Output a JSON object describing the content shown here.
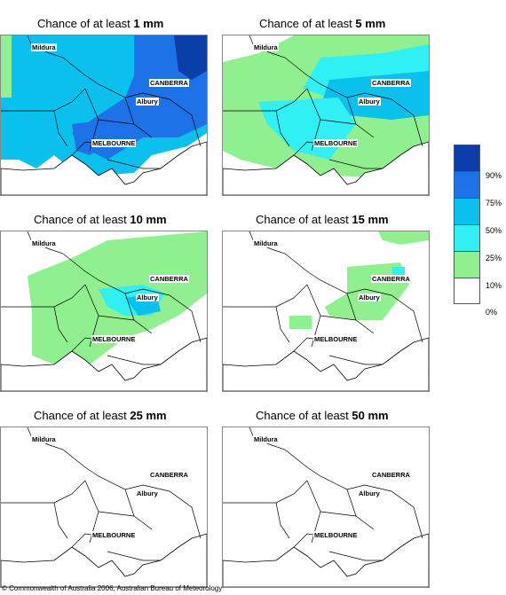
{
  "panels": [
    {
      "prefix": "Chance of at least ",
      "value": "1 mm",
      "probability_shading": "very high (50-90%) over most of the region"
    },
    {
      "prefix": "Chance of at least ",
      "value": "5 mm",
      "probability_shading": "25-75% across most of the region"
    },
    {
      "prefix": "Chance of at least ",
      "value": "10 mm",
      "probability_shading": "mostly 10-25%, some 25-50%"
    },
    {
      "prefix": "Chance of at least ",
      "value": "15 mm",
      "probability_shading": "10-25% in small north-east areas"
    },
    {
      "prefix": "Chance of at least ",
      "value": "25 mm",
      "probability_shading": "near zero, one small 10-25% spot"
    },
    {
      "prefix": "Chance of at least ",
      "value": "50 mm",
      "probability_shading": "none"
    }
  ],
  "cities": {
    "mildura": "Mildura",
    "canberra": "CANBERRA",
    "albury": "Albury",
    "melbourne": "MELBOURNE"
  },
  "legend": {
    "labels": [
      "90%",
      "75%",
      "50%",
      "25%",
      "10%",
      "0%"
    ],
    "colors": [
      "#0a3ea8",
      "#1d72e8",
      "#0ac0ec",
      "#30f0f4",
      "#90f090",
      "#ffffff"
    ]
  },
  "copyright": "© Commonwealth of Australia 2006, Australian Bureau of Meteorology"
}
